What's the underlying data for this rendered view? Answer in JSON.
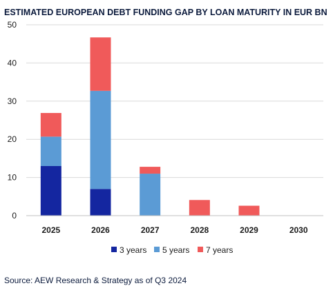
{
  "chart_data": {
    "type": "bar",
    "stacked": true,
    "title": "ESTIMATED EUROPEAN DEBT FUNDING GAP BY LOAN MATURITY IN EUR BN",
    "categories": [
      "2025",
      "2026",
      "2027",
      "2028",
      "2029",
      "2030"
    ],
    "series": [
      {
        "name": "3 years",
        "color": "#1426a0",
        "values": [
          13,
          7,
          0,
          0,
          0,
          0
        ]
      },
      {
        "name": "5 years",
        "color": "#5b9bd5",
        "values": [
          7.7,
          25.7,
          11,
          0,
          0,
          0
        ]
      },
      {
        "name": "7 years",
        "color": "#f05a5a",
        "values": [
          6.2,
          14,
          1.8,
          4.1,
          2.6,
          0
        ]
      }
    ],
    "xlabel": "",
    "ylabel": "",
    "ylim": [
      0,
      50
    ],
    "yticks": [
      0,
      10,
      20,
      30,
      40,
      50
    ],
    "grid": true,
    "legend_position": "bottom",
    "source": "Source: AEW Research & Strategy as of Q3 2024"
  }
}
